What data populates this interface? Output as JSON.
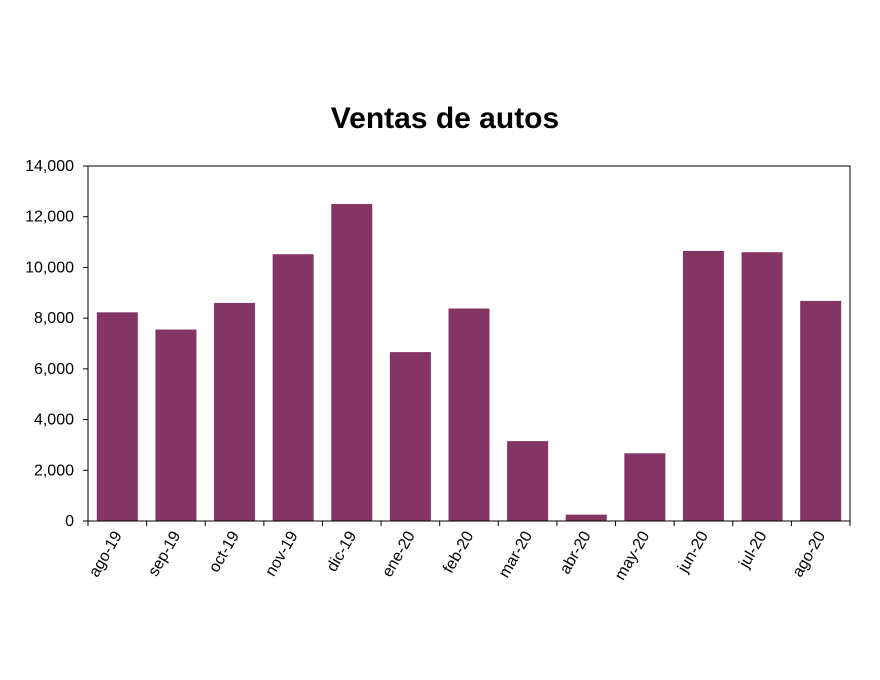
{
  "chart_data": {
    "type": "bar",
    "title": "Ventas de autos",
    "xlabel": "",
    "ylabel": "",
    "categories": [
      "ago-19",
      "sep-19",
      "oct-19",
      "nov-19",
      "dic-19",
      "ene-20",
      "feb-20",
      "mar-20",
      "abr-20",
      "may-20",
      "jun-20",
      "jul-20",
      "ago-20"
    ],
    "values": [
      8230,
      7550,
      8600,
      10520,
      12500,
      6660,
      8380,
      3150,
      250,
      2670,
      10650,
      10600,
      8680
    ],
    "ylim": [
      0,
      14000
    ],
    "yticks": [
      0,
      2000,
      4000,
      6000,
      8000,
      10000,
      12000,
      14000
    ],
    "ytick_labels": [
      "0",
      "2,000",
      "4,000",
      "6,000",
      "8,000",
      "10,000",
      "12,000",
      "14,000"
    ],
    "grid": false,
    "legend": "none",
    "bar_color": "#843563"
  }
}
